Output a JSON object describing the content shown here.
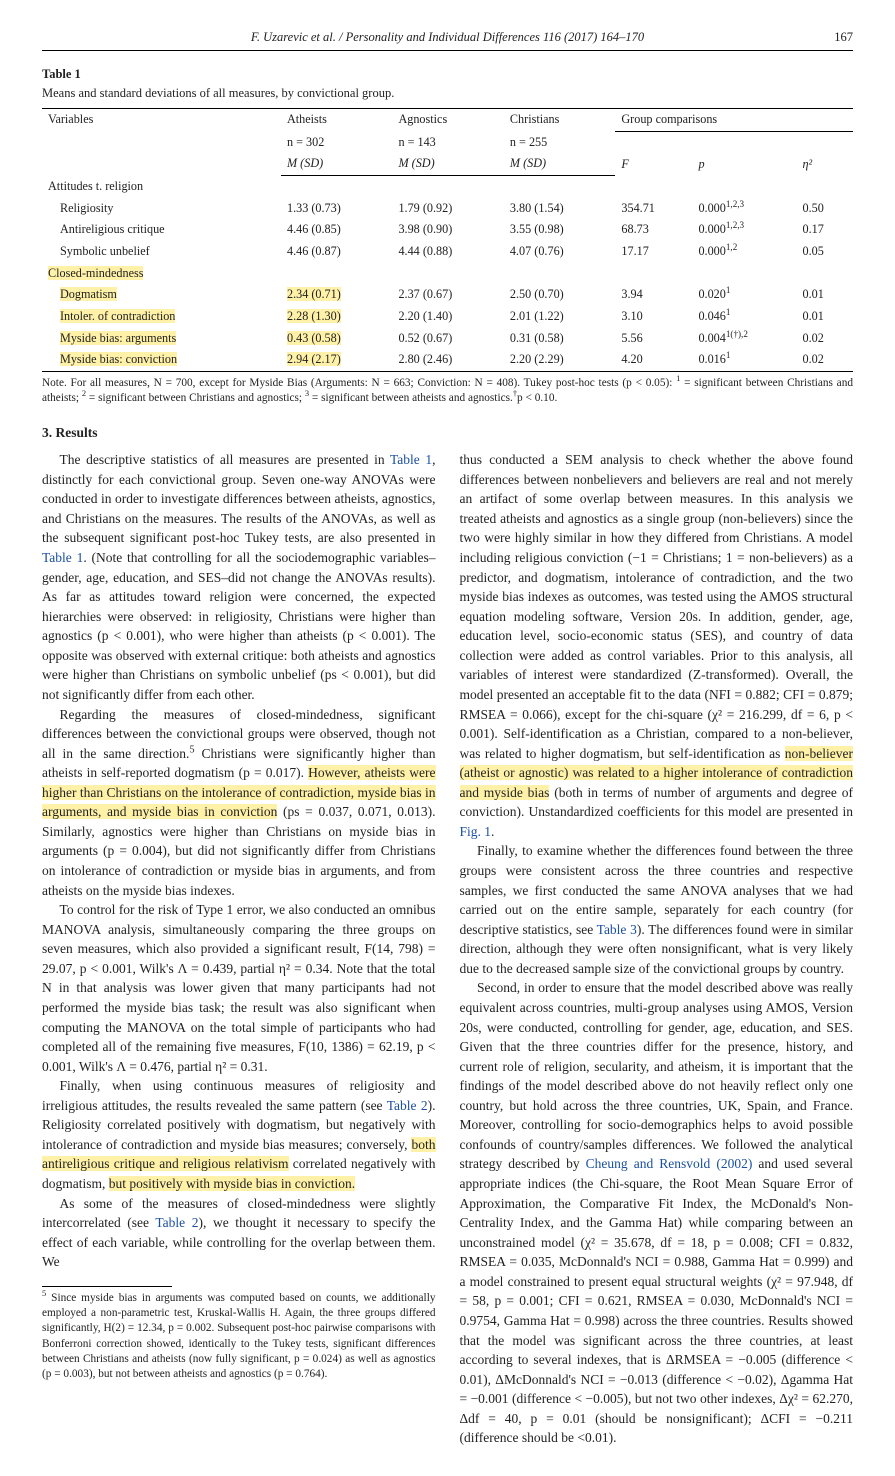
{
  "running_head": "F. Uzarevic et al. / Personality and Individual Differences 116 (2017) 164–170",
  "page_number": "167",
  "table1": {
    "label": "Table 1",
    "caption": "Means and standard deviations of all measures, by convictional group.",
    "header": {
      "variables": "Variables",
      "col1_l1": "Atheists",
      "col1_l2": "n = 302",
      "col1_l3": "M (SD)",
      "col2_l1": "Agnostics",
      "col2_l2": "n = 143",
      "col2_l3": "M (SD)",
      "col3_l1": "Christians",
      "col3_l2": "n = 255",
      "col3_l3": "M (SD)",
      "gc": "Group comparisons",
      "gc_F": "F",
      "gc_p": "p",
      "gc_eta": "η²"
    },
    "section1": "Attitudes t. religion",
    "rows1": [
      {
        "v": "Religiosity",
        "a": "1.33 (0.73)",
        "ag": "1.79 (0.92)",
        "c": "3.80 (1.54)",
        "F": "354.71",
        "p": "0.000",
        "psup": "1,2,3",
        "eta": "0.50"
      },
      {
        "v": "Antireligious critique",
        "a": "4.46 (0.85)",
        "ag": "3.98 (0.90)",
        "c": "3.55 (0.98)",
        "F": "68.73",
        "p": "0.000",
        "psup": "1,2,3",
        "eta": "0.17"
      },
      {
        "v": "Symbolic unbelief",
        "a": "4.46 (0.87)",
        "ag": "4.44 (0.88)",
        "c": "4.07 (0.76)",
        "F": "17.17",
        "p": "0.000",
        "psup": "1,2",
        "eta": "0.05"
      }
    ],
    "section2": "Closed-mindedness",
    "rows2": [
      {
        "v": "Dogmatism",
        "a": "2.34 (0.71)",
        "ag": "2.37 (0.67)",
        "c": "2.50 (0.70)",
        "F": "3.94",
        "p": "0.020",
        "psup": "1",
        "eta": "0.01"
      },
      {
        "v": "Intoler. of contradiction",
        "a": "2.28 (1.30)",
        "ag": "2.20 (1.40)",
        "c": "2.01 (1.22)",
        "F": "3.10",
        "p": "0.046",
        "psup": "1",
        "eta": "0.01"
      },
      {
        "v": "Myside bias: arguments",
        "a": "0.43 (0.58)",
        "ag": "0.52 (0.67)",
        "c": "0.31 (0.58)",
        "F": "5.56",
        "p": "0.004",
        "psup": "1(†),2",
        "eta": "0.02"
      },
      {
        "v": "Myside bias: conviction",
        "a": "2.94 (2.17)",
        "ag": "2.80 (2.46)",
        "c": "2.20 (2.29)",
        "F": "4.20",
        "p": "0.016",
        "psup": "1",
        "eta": "0.02"
      }
    ],
    "note_a": "Note. For all measures, N = 700, except for Myside Bias (Arguments: N = 663; Conviction: N = 408). Tukey post-hoc tests (p < 0.05): ",
    "note_sup1": "1",
    "note_b": " = significant between Christians and atheists; ",
    "note_sup2": "2",
    "note_c": " = significant between Christians and agnostics; ",
    "note_sup3": "3",
    "note_d": " = significant between atheists and agnostics.",
    "note_dagger": "†",
    "note_e": "p < 0.10."
  },
  "section3_head": "3. Results",
  "col1": {
    "p1a": "The descriptive statistics of all measures are presented in ",
    "p1link1": "Table 1",
    "p1b": ", distinctly for each convictional group. Seven one-way ANOVAs were conducted in order to investigate differences between atheists, agnostics, and Christians on the measures. The results of the ANOVAs, as well as the subsequent significant post-hoc Tukey tests, are also presented in ",
    "p1link2": "Table 1",
    "p1c": ". (Note that controlling for all the sociodemographic variables–gender, age, education, and SES–did not change the ANOVAs results). As far as attitudes toward religion were concerned, the expected hierarchies were observed: in religiosity, Christians were higher than agnostics (p < 0.001), who were higher than atheists (p < 0.001). The opposite was observed with external critique: both atheists and agnostics were higher than Christians on symbolic unbelief (ps < 0.001), but did not significantly differ from each other.",
    "p2a": "Regarding the measures of closed-mindedness, significant differences between the convictional groups were observed, though not all in the same direction.",
    "p2sup": "5",
    "p2b": " Christians were significantly higher than atheists in self-reported dogmatism (p = 0.017). ",
    "p2hl": "However, atheists were higher than Christians on the intolerance of contradiction, myside bias in arguments, and myside bias in conviction",
    "p2c": " (ps = 0.037, 0.071, 0.013). Similarly, agnostics were higher than Christians on myside bias in arguments (p = 0.004), but did not significantly differ from Christians on intolerance of contradiction or myside bias in arguments, and from atheists on the myside bias indexes.",
    "p3": "To control for the risk of Type 1 error, we also conducted an omnibus MANOVA analysis, simultaneously comparing the three groups on seven measures, which also provided a significant result, F(14, 798) = 29.07, p < 0.001, Wilk's Λ = 0.439, partial η² = 0.34. Note that the total N in that analysis was lower given that many participants had not performed the myside bias task; the result was also significant when computing the MANOVA on the total simple of participants who had completed all of the remaining five measures, F(10, 1386) = 62.19, p < 0.001, Wilk's Λ = 0.476, partial η² = 0.31.",
    "p4a": "Finally, when using continuous measures of religiosity and irreligious attitudes, the results revealed the same pattern (see ",
    "p4link": "Table 2",
    "p4b": "). Religiosity correlated positively with dogmatism, but negatively with intolerance of contradiction and myside bias measures; conversely, ",
    "p4hl1": "both antireligious critique and religious relativism",
    "p4c": " correlated negatively with dogmatism, ",
    "p4hl2": "but positively with myside bias in conviction.",
    "p5a": "As some of the measures of closed-mindedness were slightly intercorrelated (see ",
    "p5link": "Table 2",
    "p5b": "), we thought it necessary to specify the effect of each variable, while controlling for the overlap between them. We"
  },
  "col2": {
    "p6a": "thus conducted a SEM analysis to check whether the above found differences between nonbelievers and believers are real and not merely an artifact of some overlap between measures. In this analysis we treated atheists and agnostics as a single group (non-believers) since the two were highly similar in how they differed from Christians. A model including religious conviction (−1 = Christians; 1 = non-believers) as a predictor, and dogmatism, intolerance of contradiction, and the two myside bias indexes as outcomes, was tested using the AMOS structural equation modeling software, Version 20s. In addition, gender, age, education level, socio-economic status (SES), and country of data collection were added as control variables. Prior to this analysis, all variables of interest were standardized (Z-transformed). Overall, the model presented an acceptable fit to the data (NFI = 0.882; CFI = 0.879; RMSEA = 0.066), except for the chi-square (χ² = 216.299, df = 6, p < 0.001). Self-identification as a Christian, compared to a non-believer, was related to higher dogmatism, but self-identification as ",
    "p6hl": "non-believer (atheist or agnostic) was related to a higher intolerance of contradiction and myside bias",
    "p6b": " (both in terms of number of arguments and degree of conviction). Unstandardized coefficients for this model are presented in ",
    "p6link": "Fig. 1",
    "p6c": ".",
    "p7a": "Finally, to examine whether the differences found between the three groups were consistent across the three countries and respective samples, we first conducted the same ANOVA analyses that we had carried out on the entire sample, separately for each country (for descriptive statistics, see ",
    "p7link": "Table 3",
    "p7b": "). The differences found were in similar direction, although they were often nonsignificant, what is very likely due to the decreased sample size of the convictional groups by country.",
    "p8a": "Second, in order to ensure that the model described above was really equivalent across countries, multi-group analyses using AMOS, Version 20s, were conducted, controlling for gender, age, education, and SES. Given that the three countries differ for the presence, history, and current role of religion, secularity, and atheism, it is important that the findings of the model described above do not heavily reflect only one country, but hold across the three countries, UK, Spain, and France. Moreover, controlling for socio-demographics helps to avoid possible confounds of country/samples differences. We followed the analytical strategy described by ",
    "p8link": "Cheung and Rensvold (2002)",
    "p8b": " and used several appropriate indices (the Chi-square, the Root Mean Square Error of Approximation, the Comparative Fit Index, the McDonald's Non-Centrality Index, and the Gamma Hat) while comparing between an unconstrained model (χ² = 35.678, df = 18, p = 0.008; CFI = 0.832, RMSEA = 0.035, McDonnald's NCI = 0.988, Gamma Hat = 0.999) and a model constrained to present equal structural weights (χ² = 97.948, df = 58, p = 0.001; CFI = 0.621, RMSEA = 0.030, McDonnald's NCI = 0.9754, Gamma Hat = 0.998) across the three countries. Results showed that the model was significant across the three countries, at least according to several indexes, that is ΔRMSEA = −0.005 (difference < 0.01), ΔMcDonnald's NCI = −0.013 (difference < −0.02), Δgamma Hat = −0.001 (difference < −0.005), but not two other indexes, Δχ² = 62.270, Δdf = 40, p = 0.01 (should be nonsignificant); ΔCFI = −0.211 (difference should be <0.01)."
  },
  "footnote": {
    "sup": "5",
    "text": " Since myside bias in arguments was computed based on counts, we additionally employed a non-parametric test, Kruskal-Wallis H. Again, the three groups differed significantly, H(2) = 12.34, p = 0.002. Subsequent post-hoc pairwise comparisons with Bonferroni correction showed, identically to the Tukey tests, significant differences between Christians and atheists (now fully significant, p = 0.024) as well as agnostics (p = 0.003), but not between atheists and agnostics (p = 0.764)."
  }
}
